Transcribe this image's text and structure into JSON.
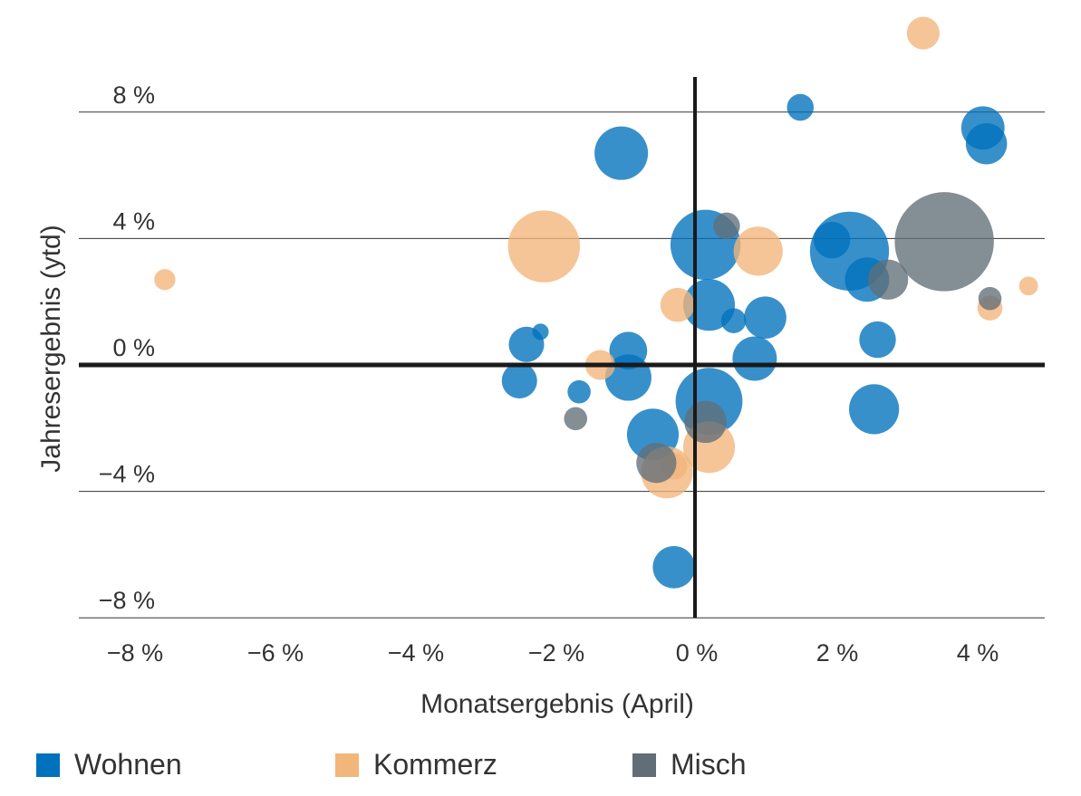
{
  "colors": {
    "Wohnen": "#0071BC",
    "Kommerz": "#F2B57A",
    "Misch": "#616E77",
    "axis": "#1a1a1a",
    "grid": "#333333"
  },
  "chart_data": {
    "type": "scatter",
    "subtype": "bubble",
    "title": "",
    "xlabel": "Monatsergebnis (April)",
    "ylabel": "Jahresergebnis (ytd)",
    "xlim": [
      -8.8,
      5.0
    ],
    "ylim": [
      -8.0,
      9.0
    ],
    "x_ticks": [
      {
        "value": -8,
        "label": "−8 %"
      },
      {
        "value": -6,
        "label": "−6 %"
      },
      {
        "value": -4,
        "label": "−4 %"
      },
      {
        "value": -2,
        "label": "−2 %"
      },
      {
        "value": 0,
        "label": "0 %"
      },
      {
        "value": 2,
        "label": "2 %"
      },
      {
        "value": 4,
        "label": "4 %"
      }
    ],
    "y_ticks": [
      {
        "value": 8,
        "label": "8 %"
      },
      {
        "value": 4,
        "label": "4 %"
      },
      {
        "value": 0,
        "label": "0 %"
      },
      {
        "value": -4,
        "label": "−4 %"
      },
      {
        "value": -8,
        "label": "−8 %"
      }
    ],
    "gridlines": "horizontal",
    "legend_position": "bottom",
    "series": [
      {
        "name": "Wohnen",
        "points": [
          {
            "x": -1.05,
            "y": 6.7,
            "size": 3.2
          },
          {
            "x": 1.5,
            "y": 8.15,
            "size": 0.8
          },
          {
            "x": 4.1,
            "y": 7.5,
            "size": 2.1
          },
          {
            "x": 4.15,
            "y": 7.0,
            "size": 1.9
          },
          {
            "x": 0.15,
            "y": 3.8,
            "size": 5.5
          },
          {
            "x": 2.2,
            "y": 3.6,
            "size": 7.0
          },
          {
            "x": 1.95,
            "y": 3.95,
            "size": 1.5
          },
          {
            "x": 2.45,
            "y": 2.7,
            "size": 2.2
          },
          {
            "x": 0.2,
            "y": 1.9,
            "size": 3.0
          },
          {
            "x": 1.0,
            "y": 1.5,
            "size": 2.0
          },
          {
            "x": 0.55,
            "y": 1.4,
            "size": 0.7
          },
          {
            "x": -2.4,
            "y": 0.65,
            "size": 1.4
          },
          {
            "x": -2.2,
            "y": 1.05,
            "size": 0.3
          },
          {
            "x": -0.95,
            "y": 0.45,
            "size": 1.6
          },
          {
            "x": 0.85,
            "y": 0.2,
            "size": 2.2
          },
          {
            "x": 2.6,
            "y": 0.8,
            "size": 1.5
          },
          {
            "x": -2.5,
            "y": -0.5,
            "size": 1.4
          },
          {
            "x": -0.95,
            "y": -0.4,
            "size": 2.4
          },
          {
            "x": -1.65,
            "y": -0.85,
            "size": 0.6
          },
          {
            "x": 0.2,
            "y": -1.15,
            "size": 5.0
          },
          {
            "x": 2.55,
            "y": -1.4,
            "size": 2.8
          },
          {
            "x": -0.6,
            "y": -2.2,
            "size": 3.0
          },
          {
            "x": -0.3,
            "y": -6.4,
            "size": 2.0
          }
        ]
      },
      {
        "name": "Kommerz",
        "points": [
          {
            "x": 3.25,
            "y": 10.5,
            "size": 1.2
          },
          {
            "x": -7.55,
            "y": 2.7,
            "size": 0.5
          },
          {
            "x": -2.15,
            "y": 3.75,
            "size": 5.8
          },
          {
            "x": 0.9,
            "y": 3.6,
            "size": 2.7
          },
          {
            "x": -0.25,
            "y": 1.9,
            "size": 1.3
          },
          {
            "x": 4.2,
            "y": 1.8,
            "size": 0.7
          },
          {
            "x": 4.75,
            "y": 2.5,
            "size": 0.4
          },
          {
            "x": -1.35,
            "y": 0.0,
            "size": 1.0
          },
          {
            "x": 0.2,
            "y": -2.6,
            "size": 3.0
          },
          {
            "x": -0.4,
            "y": -3.4,
            "size": 3.0
          },
          {
            "x": -0.3,
            "y": -3.2,
            "size": 0.8
          }
        ]
      },
      {
        "name": "Misch",
        "points": [
          {
            "x": 3.55,
            "y": 3.9,
            "size": 11.0
          },
          {
            "x": 0.45,
            "y": 4.4,
            "size": 0.8
          },
          {
            "x": 2.75,
            "y": 2.7,
            "size": 1.8
          },
          {
            "x": 4.2,
            "y": 2.1,
            "size": 0.6
          },
          {
            "x": -1.7,
            "y": -1.7,
            "size": 0.6
          },
          {
            "x": -0.55,
            "y": -3.1,
            "size": 1.8
          },
          {
            "x": 0.15,
            "y": -1.8,
            "size": 2.0
          }
        ]
      }
    ]
  }
}
